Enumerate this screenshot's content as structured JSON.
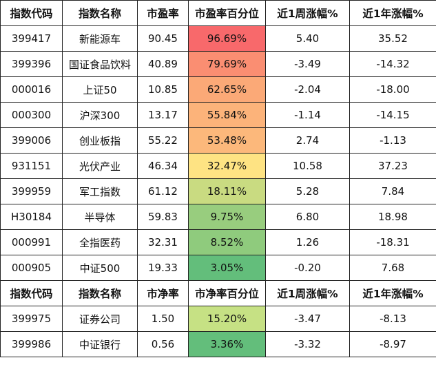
{
  "pe_table": {
    "headers": [
      "指数代码",
      "指数名称",
      "市盈率",
      "市盈率百分位",
      "近1周涨幅%",
      "近1年涨幅%"
    ],
    "rows": [
      {
        "code": "399417",
        "name": "新能源车",
        "ratio": "90.45",
        "percentile": "96.69%",
        "week": "5.40",
        "year": "35.52",
        "color": "#f8696b"
      },
      {
        "code": "399396",
        "name": "国证食品饮料",
        "ratio": "40.89",
        "percentile": "79.69%",
        "week": "-3.49",
        "year": "-14.32",
        "color": "#fa8e72"
      },
      {
        "code": "000016",
        "name": "上证50",
        "ratio": "10.85",
        "percentile": "62.65%",
        "week": "-2.04",
        "year": "-18.00",
        "color": "#fba977"
      },
      {
        "code": "000300",
        "name": "沪深300",
        "ratio": "13.17",
        "percentile": "55.84%",
        "week": "-1.14",
        "year": "-14.15",
        "color": "#fcb37a"
      },
      {
        "code": "399006",
        "name": "创业板指",
        "ratio": "55.22",
        "percentile": "53.48%",
        "week": "2.74",
        "year": "-1.13",
        "color": "#fcb87b"
      },
      {
        "code": "931151",
        "name": "光伏产业",
        "ratio": "46.34",
        "percentile": "32.47%",
        "week": "10.58",
        "year": "37.23",
        "color": "#fee383"
      },
      {
        "code": "399959",
        "name": "军工指数",
        "ratio": "61.12",
        "percentile": "18.11%",
        "week": "5.28",
        "year": "7.84",
        "color": "#c9db81"
      },
      {
        "code": "H30184",
        "name": "半导体",
        "ratio": "59.83",
        "percentile": "9.75%",
        "week": "6.80",
        "year": "18.98",
        "color": "#98cd7e"
      },
      {
        "code": "000991",
        "name": "全指医药",
        "ratio": "32.31",
        "percentile": "8.52%",
        "week": "1.26",
        "year": "-18.31",
        "color": "#8fcb7d"
      },
      {
        "code": "000905",
        "name": "中证500",
        "ratio": "19.33",
        "percentile": "3.05%",
        "week": "-0.20",
        "year": "7.68",
        "color": "#63be7b"
      }
    ]
  },
  "pb_table": {
    "headers": [
      "指数代码",
      "指数名称",
      "市净率",
      "市净率百分位",
      "近1周涨幅%",
      "近1年涨幅%"
    ],
    "rows": [
      {
        "code": "399975",
        "name": "证券公司",
        "ratio": "1.50",
        "percentile": "15.20%",
        "week": "-3.47",
        "year": "-8.13",
        "color": "#c6e184"
      },
      {
        "code": "399986",
        "name": "中证银行",
        "ratio": "0.56",
        "percentile": "3.36%",
        "week": "-3.32",
        "year": "-8.97",
        "color": "#63be7b"
      }
    ]
  }
}
